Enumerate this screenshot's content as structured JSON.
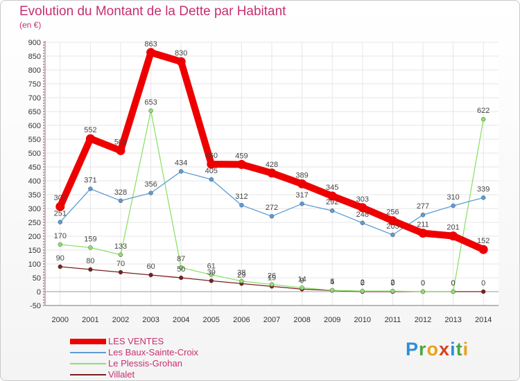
{
  "header": {
    "title": "Evolution du Montant de la Dette par Habitant",
    "unit": "(en €)"
  },
  "logo": {
    "text": "Proxiti",
    "letters": [
      "P",
      "r",
      "o",
      "x",
      "i",
      "t",
      "i"
    ],
    "colors": [
      "#2d8fd6",
      "#4aa83f",
      "#e8a21f",
      "#d8401f",
      "#2d8fd6",
      "#4aa83f",
      "#e8a21f"
    ]
  },
  "chart_data": {
    "type": "line",
    "title": "Evolution du Montant de la Dette par Habitant",
    "subtitle": "(en €)",
    "x": [
      2000,
      2001,
      2002,
      2003,
      2004,
      2005,
      2006,
      2007,
      2008,
      2009,
      2010,
      2011,
      2012,
      2013,
      2014
    ],
    "ylim": [
      -50,
      900
    ],
    "yticks": [
      -50,
      0,
      50,
      100,
      150,
      200,
      250,
      300,
      350,
      400,
      450,
      500,
      550,
      600,
      650,
      700,
      750,
      800,
      850,
      900
    ],
    "grid": true,
    "legend_position": "bottom-left",
    "series": [
      {
        "name": "LES VENTES",
        "color": "#ee0000",
        "values": [
          307,
          552,
          509,
          863,
          830,
          460,
          459,
          428,
          389,
          345,
          303,
          256,
          211,
          201,
          152
        ],
        "labels": [
          "307",
          "552",
          "509",
          "863",
          "830",
          "460",
          "459",
          "428",
          "389",
          "345",
          "303",
          "256",
          "211",
          "201",
          "152"
        ]
      },
      {
        "name": "Les Baux-Sainte-Croix",
        "color": "#5b9bd5",
        "values": [
          251,
          371,
          328,
          356,
          434,
          405,
          312,
          272,
          317,
          292,
          248,
          205,
          277,
          310,
          339
        ],
        "labels": [
          "251",
          "371",
          "328",
          "356",
          "434",
          "405",
          "312",
          "272",
          "317",
          "292",
          "248",
          "205",
          "277",
          "310",
          "339"
        ]
      },
      {
        "name": "Le Plessis-Grohan",
        "color": "#8ee06a",
        "values": [
          170,
          159,
          133,
          653,
          87,
          61,
          38,
          26,
          14,
          5,
          2,
          2,
          0,
          0,
          622
        ],
        "labels": [
          "170",
          "159",
          "133",
          "653",
          "87",
          "61",
          "38",
          "26",
          "14",
          "5",
          "2",
          "2",
          "0",
          "0",
          "622"
        ]
      },
      {
        "name": "Villalet",
        "color": "#7a1e1e",
        "values": [
          90,
          80,
          70,
          60,
          50,
          39,
          29,
          19,
          9,
          4,
          0,
          0,
          0,
          0,
          0
        ],
        "labels": [
          "90",
          "80",
          "70",
          "60",
          "50",
          "39",
          "29",
          "19",
          "9",
          "4",
          "0",
          "0",
          "0",
          "0",
          "0"
        ]
      }
    ]
  }
}
